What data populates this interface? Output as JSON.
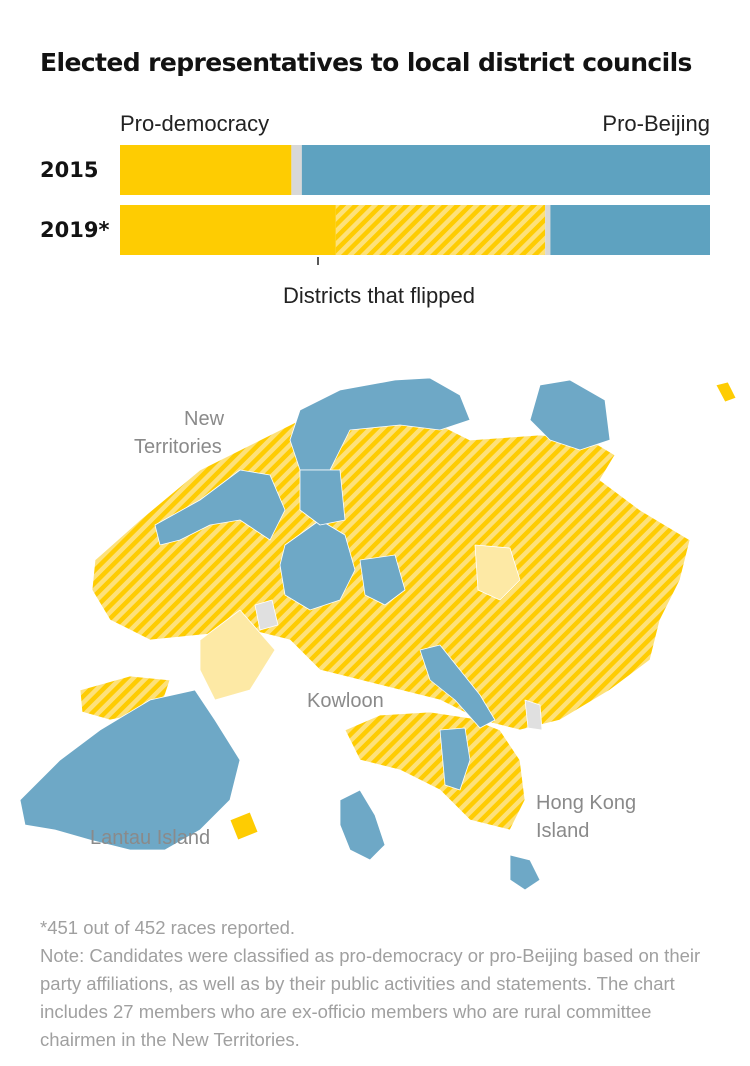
{
  "title": "Elected representatives to local district councils",
  "legend": {
    "left": "Pro-democracy",
    "right": "Pro-Beijing",
    "flipped": "Districts that flipped"
  },
  "colors": {
    "pro_democracy": "#fecc02",
    "pro_beijing": "#5ea2c0",
    "other": "#d8d8d8",
    "flipped_stripe": "#fde17a"
  },
  "chart_data": {
    "type": "bar",
    "orientation": "horizontal-stacked",
    "categories": [
      "2015",
      "2019*"
    ],
    "series": [
      {
        "name": "Pro-democracy",
        "values": [
          131,
          165
        ]
      },
      {
        "name": "Districts that flipped",
        "values": [
          0,
          160
        ]
      },
      {
        "name": "Other",
        "values": [
          8,
          4
        ]
      },
      {
        "name": "Pro-Beijing",
        "values": [
          312,
          122
        ]
      }
    ]
  },
  "map": {
    "labels": {
      "new_territories": [
        "New",
        "Territories"
      ],
      "kowloon": "Kowloon",
      "hong_kong_island": [
        "Hong Kong",
        "Island"
      ],
      "lantau": "Lantau Island"
    }
  },
  "notes": {
    "asterisk": "*451 out of 452 races reported.",
    "note": "Note: Candidates were classified as pro-democracy or pro-Beijing based on their party affiliations, as well as by their public activities and statements. The chart includes 27 members who are ex-officio members who are rural committee chairmen in the New Territories."
  }
}
